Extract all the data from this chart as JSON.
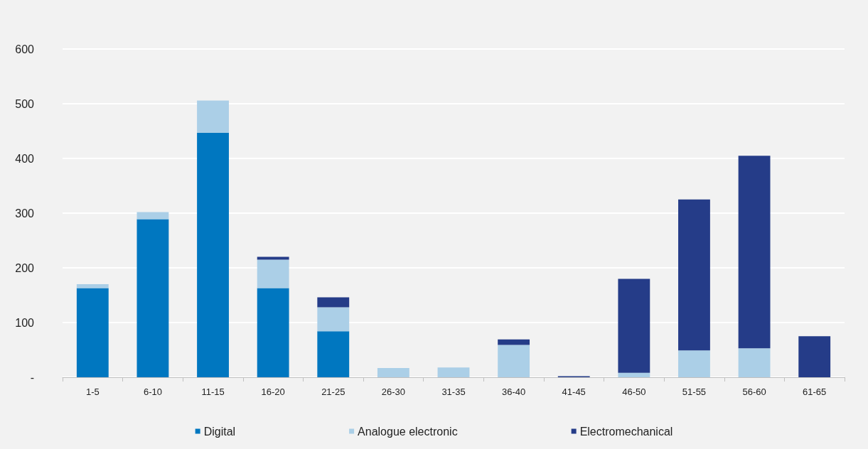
{
  "chart_data": {
    "type": "bar",
    "stacked": true,
    "categories": [
      "1-5",
      "6-10",
      "11-15",
      "16-20",
      "21-25",
      "26-30",
      "31-35",
      "36-40",
      "41-45",
      "46-50",
      "51-55",
      "56-60",
      "61-65"
    ],
    "series": [
      {
        "name": "Digital",
        "color": "#0077c0",
        "values": [
          163,
          289,
          447,
          163,
          84,
          0,
          0,
          0,
          0,
          0,
          0,
          0,
          0
        ]
      },
      {
        "name": "Analogue electronic",
        "color": "#abcfe7",
        "values": [
          7,
          13,
          59,
          52,
          44,
          17,
          18,
          59,
          0,
          8,
          49,
          53,
          0
        ]
      },
      {
        "name": "Electromechanical",
        "color": "#253c88",
        "values": [
          0,
          0,
          0,
          5,
          18,
          0,
          0,
          10,
          2,
          172,
          276,
          352,
          75
        ]
      }
    ],
    "ylim": [
      0,
      600
    ],
    "yticks": [
      {
        "value": 0,
        "label": "-"
      },
      100,
      200,
      300,
      400,
      500,
      600
    ],
    "grid": "y",
    "legend": "bottom"
  }
}
